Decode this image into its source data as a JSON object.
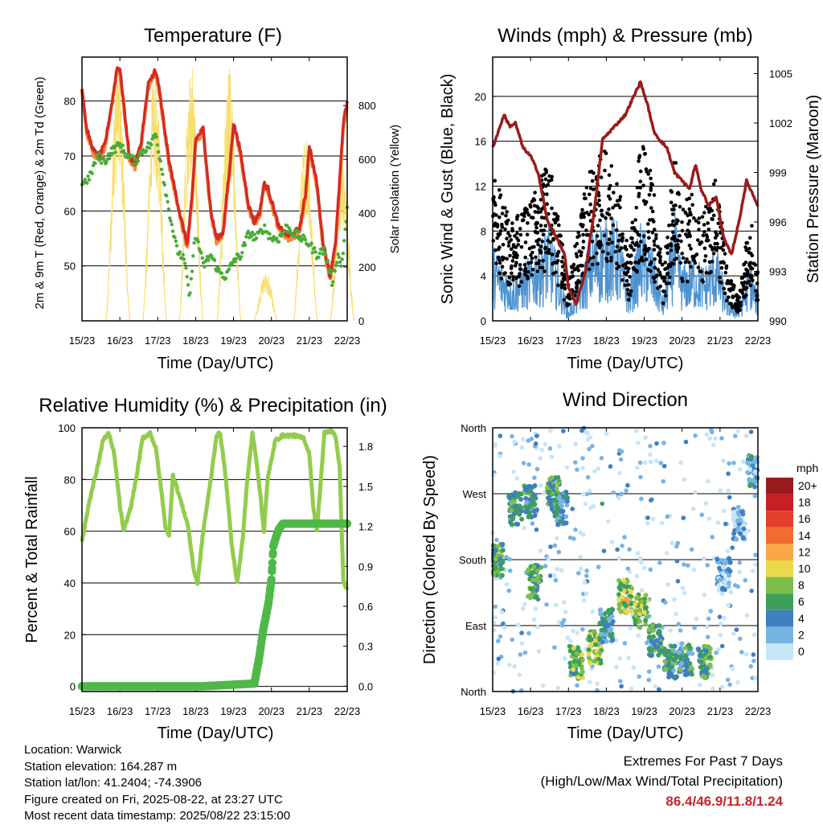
{
  "x_ticks": [
    "15/23",
    "16/23",
    "17/23",
    "18/23",
    "19/23",
    "20/23",
    "21/23",
    "22/23"
  ],
  "colors": {
    "temp_red": "#d62a22",
    "temp_orange": "#f08a3c",
    "dewpoint_green": "#4aab3a",
    "solar_yellow": "#f7dd6a",
    "wind_blue": "#4d93d1",
    "gust_black": "#000000",
    "pressure_maroon": "#9b1b1b",
    "rh_green": "#92cc4d",
    "precip_green": "#4fb848"
  },
  "chart_data": [
    {
      "id": "temperature",
      "type": "line",
      "title": "Temperature (F)",
      "xlabel": "Time (Day/UTC)",
      "ylabel": "2m & 9m T (Red, Orange) & 2m Td (Green)",
      "ylabel_right": "Solar Insolation (Yellow)",
      "ylim": [
        40,
        88
      ],
      "y_ticks": [
        50,
        60,
        70,
        80
      ],
      "ylim_right": [
        0,
        980
      ],
      "y_ticks_right": [
        0,
        200,
        400,
        600,
        800
      ],
      "grid": true,
      "series": [
        {
          "name": "2m T",
          "color": "#d62a22",
          "x": [
            0,
            0.12,
            0.3,
            0.45,
            0.6,
            0.8,
            0.92,
            1.0,
            1.25,
            1.4,
            1.55,
            1.75,
            1.92,
            2.0,
            2.3,
            2.6,
            2.78,
            2.9,
            3.0,
            3.2,
            3.4,
            3.55,
            3.72,
            3.9,
            4.0,
            4.15,
            4.4,
            4.55,
            4.7,
            4.8,
            4.92,
            5.0,
            5.2,
            5.45,
            5.6,
            5.75,
            5.9,
            6.0,
            6.2,
            6.35,
            6.55,
            6.7,
            6.9,
            7.0
          ],
          "y": [
            82.5,
            75,
            71,
            70,
            72,
            80,
            86,
            86,
            70,
            68.5,
            72,
            83,
            85.5,
            84,
            69,
            59,
            54,
            62,
            73,
            75,
            60,
            55,
            56,
            68,
            76,
            72,
            61,
            58,
            60,
            65,
            64,
            62,
            57,
            55.5,
            56,
            57,
            63,
            72,
            65,
            55,
            48,
            55,
            76,
            80
          ]
        },
        {
          "name": "Td",
          "color": "#4aab3a",
          "x": [
            0,
            0.2,
            0.4,
            0.6,
            0.8,
            1.0,
            1.2,
            1.4,
            1.6,
            1.8,
            1.95,
            2.1,
            2.3,
            2.5,
            2.7,
            2.85,
            2.95,
            3.05,
            3.2,
            3.4,
            3.6,
            3.8,
            4.0,
            4.2,
            4.4,
            4.6,
            4.8,
            5.0,
            5.2,
            5.4,
            5.6,
            5.8,
            6.0,
            6.2,
            6.4,
            6.6,
            6.75,
            6.85,
            7.0
          ],
          "y": [
            65,
            66,
            70,
            69,
            71,
            72,
            70,
            69,
            71,
            72,
            74,
            68,
            60,
            53,
            51,
            44,
            54,
            55,
            50,
            52,
            49,
            48,
            51,
            52,
            56,
            55,
            57,
            55,
            55,
            57,
            56,
            55,
            54,
            52,
            53,
            47,
            52,
            50,
            60
          ]
        },
        {
          "name": "Solar",
          "color": "#f7dd6a",
          "peaks": [
            [
              0.95,
              960
            ],
            [
              1.92,
              950
            ],
            [
              2.88,
              960
            ],
            [
              3.88,
              960
            ],
            [
              4.85,
              180
            ],
            [
              5.9,
              700
            ],
            [
              6.87,
              620
            ]
          ]
        }
      ]
    },
    {
      "id": "winds",
      "type": "scatter",
      "title": "Winds (mph) & Pressure (mb)",
      "xlabel": "Time (Day/UTC)",
      "ylabel": "Sonic Wind & Gust (Blue, Black)",
      "ylabel_right": "Station Pressure (Maroon)",
      "ylim": [
        0,
        23.5
      ],
      "y_ticks": [
        0,
        4,
        8,
        12,
        16,
        20
      ],
      "ylim_right": [
        990,
        1006
      ],
      "y_ticks_right": [
        990,
        993,
        996,
        999,
        1002,
        1005
      ],
      "grid": true,
      "pressure": {
        "name": "Station Pressure",
        "color": "#9b1b1b",
        "x": [
          0,
          0.15,
          0.3,
          0.45,
          0.6,
          0.8,
          1.0,
          1.2,
          1.45,
          1.7,
          1.9,
          2.0,
          2.2,
          2.45,
          2.7,
          2.9,
          3.1,
          3.3,
          3.5,
          3.7,
          3.9,
          4.1,
          4.25,
          4.4,
          4.6,
          4.8,
          5.0,
          5.2,
          5.35,
          5.5,
          5.7,
          5.9,
          6.1,
          6.3,
          6.5,
          6.7,
          6.9,
          7.0
        ],
        "y": [
          1000.5,
          1001.5,
          1002.5,
          1001.8,
          1002,
          1000.5,
          1000,
          999,
          996,
          995,
          994,
          992,
          991,
          993,
          997,
          1001,
          1001.5,
          1002,
          1002.5,
          1003.5,
          1004.5,
          1003,
          1001.5,
          1001,
          1000.5,
          999,
          998.5,
          998,
          999.5,
          998,
          997,
          997.5,
          995,
          994,
          996,
          998.5,
          997.5,
          997
        ]
      },
      "wind_envelope": {
        "name": "Sonic Wind",
        "x": [
          0,
          0.5,
          1.0,
          1.5,
          1.8,
          2.0,
          2.3,
          2.6,
          3.0,
          3.3,
          3.6,
          3.9,
          4.2,
          4.5,
          4.8,
          5.0,
          5.3,
          5.6,
          5.9,
          6.2,
          6.5,
          6.8,
          7.0
        ],
        "y": [
          7,
          4,
          6,
          9,
          4,
          1,
          4,
          8,
          10,
          9,
          3,
          9,
          7,
          2,
          10,
          5,
          6,
          5,
          7,
          2,
          1,
          6,
          2
        ]
      },
      "gust_envelope": {
        "name": "Gust",
        "x": [
          0,
          0.5,
          1.0,
          1.5,
          1.8,
          2.0,
          2.3,
          2.6,
          3.0,
          3.3,
          3.6,
          3.9,
          4.2,
          4.5,
          4.8,
          5.0,
          5.3,
          5.6,
          5.9,
          6.2,
          6.5,
          6.8,
          7.0
        ],
        "y": [
          13,
          8,
          10,
          13,
          7,
          3,
          9,
          13,
          14,
          12,
          5,
          15,
          12,
          4,
          14,
          9,
          11,
          9,
          12,
          4,
          2,
          9,
          4
        ]
      }
    },
    {
      "id": "humidity",
      "type": "line",
      "title": "Relative Humidity (%) & Precipitation (in)",
      "xlabel": "Time (Day/UTC)",
      "ylabel": "Percent & Total Rainfall",
      "ylim": [
        -2,
        100
      ],
      "y_ticks": [
        0,
        20,
        40,
        60,
        80,
        100
      ],
      "ylim_right": [
        -0.04,
        1.94
      ],
      "y_ticks_right": [
        "0.0",
        "0.3",
        "0.6",
        "0.9",
        "1.2",
        "1.5",
        "1.8"
      ],
      "grid": true,
      "series": [
        {
          "name": "RH",
          "color": "#92cc4d",
          "x": [
            0,
            0.2,
            0.4,
            0.55,
            0.7,
            0.85,
            1.0,
            1.1,
            1.3,
            1.45,
            1.6,
            1.8,
            1.95,
            2.1,
            2.2,
            2.3,
            2.4,
            2.6,
            2.8,
            2.95,
            3.05,
            3.2,
            3.4,
            3.55,
            3.65,
            3.8,
            3.95,
            4.1,
            4.25,
            4.35,
            4.5,
            4.6,
            4.7,
            4.8,
            4.9,
            5.1,
            5.3,
            5.6,
            5.85,
            6.0,
            6.1,
            6.2,
            6.4,
            6.6,
            6.7,
            6.8,
            6.9,
            7.0
          ],
          "y": [
            56,
            72,
            84,
            95,
            98,
            90,
            70,
            60,
            70,
            82,
            96,
            98,
            92,
            75,
            62,
            58,
            82,
            72,
            62,
            45,
            40,
            60,
            80,
            97,
            98,
            80,
            55,
            40,
            58,
            78,
            98,
            88,
            75,
            60,
            80,
            95,
            97,
            97,
            96,
            90,
            70,
            60,
            98,
            99,
            96,
            85,
            40,
            38
          ]
        },
        {
          "name": "Total Rainfall",
          "color": "#4fb848",
          "x": [
            0,
            3.2,
            4.55,
            4.68,
            4.78,
            4.85,
            4.92,
            5.0,
            5.05,
            5.12,
            5.2,
            5.3,
            5.5,
            6.0,
            6.5,
            7.0
          ],
          "y": [
            0.0,
            0.0,
            0.02,
            0.22,
            0.42,
            0.52,
            0.62,
            0.8,
            1.05,
            1.12,
            1.18,
            1.22,
            1.22,
            1.22,
            1.22,
            1.22
          ]
        }
      ]
    },
    {
      "id": "wind_direction",
      "type": "scatter",
      "title": "Wind Direction",
      "xlabel": "Time (Day/UTC)",
      "ylabel": "Direction (Colored By Speed)",
      "y_ticks": [
        "North",
        "East",
        "South",
        "West",
        "North"
      ],
      "grid": true,
      "legend_title": "mph",
      "legend_labels": [
        "20+",
        "18",
        "16",
        "14",
        "12",
        "10",
        "8",
        "6",
        "4",
        "2",
        "0"
      ],
      "legend_colors": [
        "#9a1b1e",
        "#c81f25",
        "#e43e2c",
        "#f26b31",
        "#f9a748",
        "#ead94c",
        "#7dbf4d",
        "#3e9f5a",
        "#3e7fc0",
        "#78b4e2",
        "#c6e5f6"
      ],
      "clusters": [
        {
          "x": 0.1,
          "dir": 180,
          "spd": 6
        },
        {
          "x": 0.6,
          "dir": 250,
          "spd": 6
        },
        {
          "x": 1.0,
          "dir": 260,
          "spd": 5
        },
        {
          "x": 1.1,
          "dir": 150,
          "spd": 6
        },
        {
          "x": 1.6,
          "dir": 270,
          "spd": 6
        },
        {
          "x": 1.8,
          "dir": 250,
          "spd": 4
        },
        {
          "x": 2.2,
          "dir": 40,
          "spd": 7
        },
        {
          "x": 2.7,
          "dir": 60,
          "spd": 8
        },
        {
          "x": 3.0,
          "dir": 90,
          "spd": 4
        },
        {
          "x": 3.5,
          "dir": 130,
          "spd": 9
        },
        {
          "x": 3.9,
          "dir": 110,
          "spd": 8
        },
        {
          "x": 4.3,
          "dir": 70,
          "spd": 5
        },
        {
          "x": 4.7,
          "dir": 40,
          "spd": 5
        },
        {
          "x": 5.1,
          "dir": 45,
          "spd": 5
        },
        {
          "x": 5.6,
          "dir": 40,
          "spd": 6
        },
        {
          "x": 6.1,
          "dir": 160,
          "spd": 2
        },
        {
          "x": 6.5,
          "dir": 230,
          "spd": 2
        },
        {
          "x": 6.9,
          "dir": 300,
          "spd": 3
        }
      ]
    }
  ],
  "footer": {
    "location": "Location: Warwick",
    "elevation": "Station elevation: 164.287 m",
    "latlon": "Station lat/lon: 41.2404; -74.3906",
    "created": "Figure created on Fri, 2025-08-22, at 23:27 UTC",
    "recent": "Most recent data timestamp: 2025/08/22 23:15:00"
  },
  "extremes": {
    "title": "Extremes For Past 7 Days",
    "subtitle": "(High/Low/Max Wind/Total Precipitation)",
    "values": "86.4/46.9/11.8/1.24"
  }
}
